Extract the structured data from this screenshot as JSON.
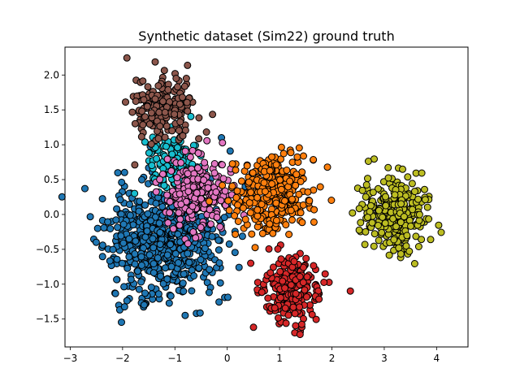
{
  "chart_data": {
    "type": "scatter",
    "title": "Synthetic dataset (Sim22)  ground truth",
    "xlabel": "",
    "ylabel": "",
    "xlim": [
      -3.1,
      4.6
    ],
    "ylim": [
      -1.9,
      2.4
    ],
    "xticks": [
      -3,
      -2,
      -1,
      0,
      1,
      2,
      3,
      4
    ],
    "yticks": [
      -1.5,
      -1.0,
      -0.5,
      0.0,
      0.5,
      1.0,
      1.5,
      2.0
    ],
    "xtick_labels": [
      "−3",
      "−2",
      "−1",
      "0",
      "1",
      "2",
      "3",
      "4"
    ],
    "ytick_labels": [
      "−1.5",
      "−1.0",
      "−0.5",
      "0.0",
      "0.5",
      "1.0",
      "1.5",
      "2.0"
    ],
    "grid": false,
    "marker_edge_color": "#000000",
    "series": [
      {
        "color": "#1f77b4",
        "center": [
          -1.25,
          -0.35
        ],
        "spread": [
          0.55,
          0.42
        ],
        "count": 650,
        "seed": 11
      },
      {
        "color": "#17becf",
        "center": [
          -1.05,
          0.75
        ],
        "spread": [
          0.28,
          0.2
        ],
        "count": 120,
        "seed": 23
      },
      {
        "color": "#e377c2",
        "center": [
          -0.55,
          0.3
        ],
        "spread": [
          0.3,
          0.26
        ],
        "count": 230,
        "seed": 37
      },
      {
        "color": "#8c564b",
        "center": [
          -1.2,
          1.55
        ],
        "spread": [
          0.28,
          0.25
        ],
        "count": 200,
        "seed": 41
      },
      {
        "color": "#ff7f0e",
        "center": [
          0.85,
          0.3
        ],
        "spread": [
          0.35,
          0.27
        ],
        "count": 330,
        "seed": 53
      },
      {
        "color": "#d62728",
        "center": [
          1.2,
          -1.05
        ],
        "spread": [
          0.28,
          0.24
        ],
        "count": 240,
        "seed": 67
      },
      {
        "color": "#bcbd22",
        "center": [
          3.2,
          0.0
        ],
        "spread": [
          0.32,
          0.26
        ],
        "count": 300,
        "seed": 79
      }
    ]
  }
}
